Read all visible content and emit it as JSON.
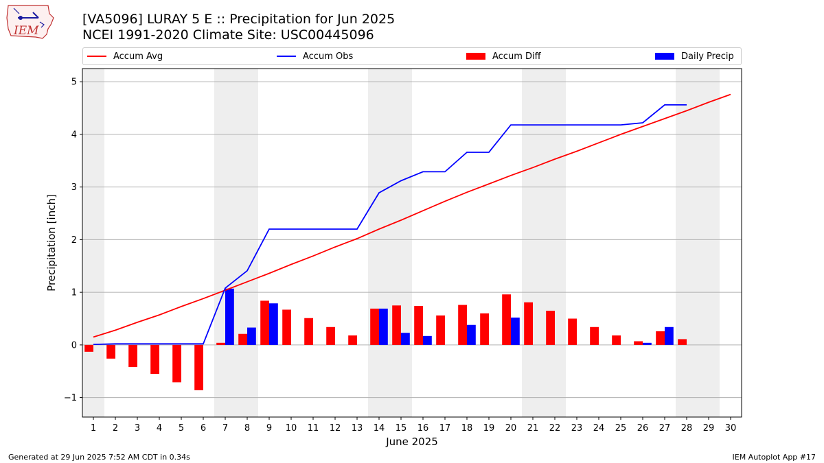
{
  "title_line1": "[VA5096] LURAY 5 E :: Precipitation for Jun 2025",
  "title_line2": "NCEI 1991-2020 Climate Site: USC00445096",
  "logo_text": "IEM",
  "footer_left": "Generated at 29 Jun 2025 7:52 AM CDT in 0.34s",
  "footer_right": "IEM Autoplot App #17",
  "colors": {
    "avg": "#ff0000",
    "obs": "#0000ff",
    "diff": "#ff0000",
    "daily": "#0000ff",
    "weekend": "#eeeeee",
    "grid": "#b0b0b0"
  },
  "chart_data": {
    "type": "bar",
    "xlabel": "June 2025",
    "ylabel": "Precipitation [inch]",
    "x": [
      1,
      2,
      3,
      4,
      5,
      6,
      7,
      8,
      9,
      10,
      11,
      12,
      13,
      14,
      15,
      16,
      17,
      18,
      19,
      20,
      21,
      22,
      23,
      24,
      25,
      26,
      27,
      28,
      29,
      30
    ],
    "xticks": [
      "1",
      "2",
      "3",
      "4",
      "5",
      "6",
      "7",
      "8",
      "9",
      "10",
      "11",
      "12",
      "13",
      "14",
      "15",
      "16",
      "17",
      "18",
      "19",
      "20",
      "21",
      "22",
      "23",
      "24",
      "25",
      "26",
      "27",
      "28",
      "29",
      "30"
    ],
    "xlim": [
      0.5,
      30.5
    ],
    "ylim": [
      -1.37,
      5.25
    ],
    "yticks": [
      -1,
      0,
      1,
      2,
      3,
      4,
      5
    ],
    "ytick_labels": [
      "−1",
      "0",
      "1",
      "2",
      "3",
      "4",
      "5"
    ],
    "grid": "horizontal",
    "legend_position": "top",
    "shaded_weekends": [
      [
        0.5,
        1.5
      ],
      [
        6.5,
        8.5
      ],
      [
        13.5,
        15.5
      ],
      [
        20.5,
        22.5
      ],
      [
        27.5,
        29.5
      ]
    ],
    "series": [
      {
        "name": "Accum Avg",
        "type": "line",
        "values": [
          0.15,
          0.28,
          0.43,
          0.57,
          0.73,
          0.88,
          1.04,
          1.2,
          1.36,
          1.53,
          1.69,
          1.86,
          2.02,
          2.2,
          2.37,
          2.55,
          2.73,
          2.9,
          3.06,
          3.22,
          3.37,
          3.53,
          3.68,
          3.84,
          4.0,
          4.15,
          4.3,
          4.45,
          4.61,
          4.76
        ]
      },
      {
        "name": "Accum Obs",
        "type": "line",
        "values": [
          0.01,
          0.02,
          0.02,
          0.02,
          0.02,
          0.02,
          1.08,
          1.41,
          2.2,
          2.2,
          2.2,
          2.2,
          2.2,
          2.89,
          3.12,
          3.29,
          3.29,
          3.66,
          3.66,
          4.18,
          4.18,
          4.18,
          4.18,
          4.18,
          4.18,
          4.22,
          4.56,
          4.56,
          null,
          null
        ]
      },
      {
        "name": "Accum Diff",
        "type": "bar",
        "values": [
          -0.13,
          -0.26,
          -0.42,
          -0.55,
          -0.71,
          -0.86,
          0.04,
          0.21,
          0.84,
          0.67,
          0.51,
          0.34,
          0.18,
          0.69,
          0.75,
          0.74,
          0.56,
          0.76,
          0.6,
          0.96,
          0.81,
          0.65,
          0.5,
          0.34,
          0.18,
          0.07,
          0.26,
          0.11,
          null,
          null
        ]
      },
      {
        "name": "Daily Precip",
        "type": "bar",
        "values": [
          0,
          0,
          0,
          0,
          0,
          0,
          1.07,
          0.33,
          0.79,
          0,
          0,
          0,
          0,
          0.69,
          0.23,
          0.17,
          0,
          0.38,
          0,
          0.52,
          0,
          0,
          0,
          0,
          0,
          0.04,
          0.34,
          0,
          null,
          null
        ]
      }
    ]
  }
}
